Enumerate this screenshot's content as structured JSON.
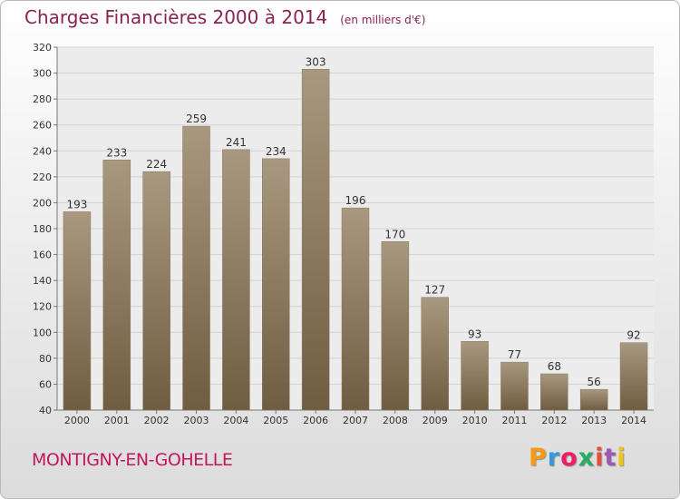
{
  "title": "Charges Financières 2000 à 2014",
  "subtitle": "(en milliers d'€)",
  "commune": "MONTIGNY-EN-GOHELLE",
  "logo": {
    "letters": [
      "P",
      "r",
      "o",
      "x",
      "i",
      "t",
      "i"
    ],
    "colors": [
      "#f39c12",
      "#3498db",
      "#e91e63",
      "#27ae60",
      "#e74c3c",
      "#9b59b6",
      "#f1c40f"
    ]
  },
  "colors": {
    "bar_top": "#a8987f",
    "bar_bottom": "#6f5d41",
    "title": "#8b2252",
    "commune": "#c2185b"
  },
  "chart_data": {
    "type": "bar",
    "title": "Charges Financières 2000 à 2014",
    "subtitle": "(en milliers d'€)",
    "xlabel": "",
    "ylabel": "",
    "categories": [
      "2000",
      "2001",
      "2002",
      "2003",
      "2004",
      "2005",
      "2006",
      "2007",
      "2008",
      "2009",
      "2010",
      "2011",
      "2012",
      "2013",
      "2014"
    ],
    "values": [
      193,
      233,
      224,
      259,
      241,
      234,
      303,
      196,
      170,
      127,
      93,
      77,
      68,
      56,
      92
    ],
    "ylim": [
      40,
      320
    ],
    "yticks": [
      40,
      60,
      80,
      100,
      120,
      140,
      160,
      180,
      200,
      220,
      240,
      260,
      280,
      300,
      320
    ],
    "grid": true,
    "legend": "none"
  }
}
